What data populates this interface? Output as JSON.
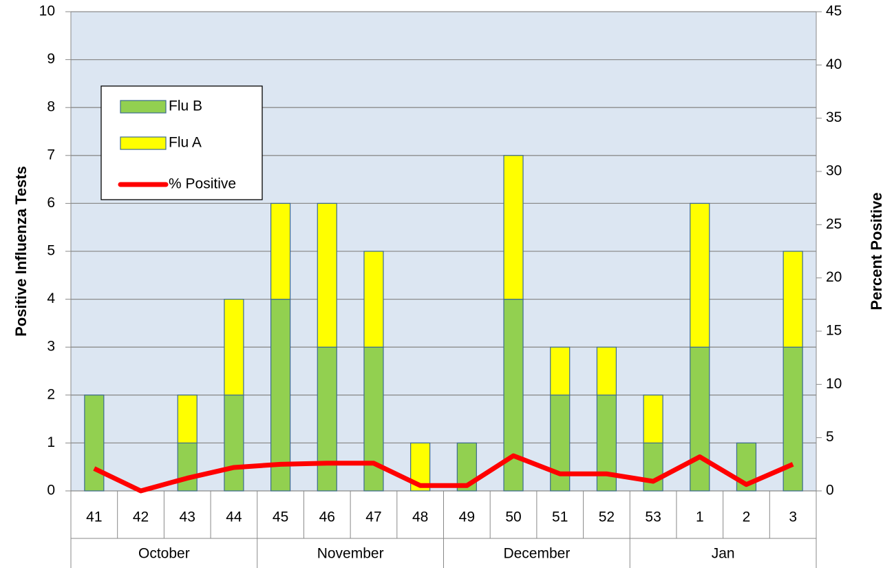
{
  "chart_data": {
    "type": "bar",
    "stacked": true,
    "categories": [
      "41",
      "42",
      "43",
      "44",
      "45",
      "46",
      "47",
      "48",
      "49",
      "50",
      "51",
      "52",
      "53",
      "1",
      "2",
      "3"
    ],
    "months": [
      "October",
      null,
      null,
      null,
      "November",
      null,
      null,
      null,
      "December",
      null,
      null,
      null,
      "Jan",
      null,
      null,
      null
    ],
    "series": [
      {
        "name": "Flu B",
        "type": "bar",
        "color": "#92d050",
        "values": [
          2,
          0,
          1,
          2,
          4,
          3,
          3,
          0,
          1,
          4,
          2,
          2,
          1,
          3,
          1,
          3
        ]
      },
      {
        "name": "Flu A",
        "type": "bar",
        "color": "#ffff00",
        "values": [
          0,
          0,
          1,
          2,
          2,
          3,
          2,
          1,
          0,
          3,
          1,
          1,
          1,
          3,
          0,
          2
        ]
      },
      {
        "name": "% Positive",
        "type": "line",
        "axis": "y2",
        "color": "#ff0000",
        "values": [
          2.1,
          0,
          1.2,
          2.2,
          2.5,
          2.6,
          2.6,
          0.5,
          0.5,
          3.3,
          1.6,
          1.6,
          0.9,
          3.2,
          0.6,
          2.5
        ]
      }
    ],
    "ylabel": "Positive Influenza Tests",
    "y2label": "Percent Positive",
    "ylim": [
      0,
      10
    ],
    "yticks": [
      0,
      1,
      2,
      3,
      4,
      5,
      6,
      7,
      8,
      9,
      10
    ],
    "y2lim": [
      0,
      45
    ],
    "y2ticks": [
      0,
      5,
      10,
      15,
      20,
      25,
      30,
      35,
      40,
      45
    ],
    "grid": true,
    "legend": "upper left"
  }
}
